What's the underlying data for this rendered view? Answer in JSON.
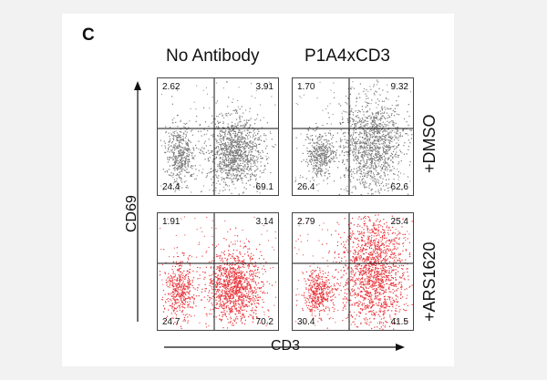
{
  "figure": {
    "panel_letter": "C",
    "column_titles": [
      "No Antibody",
      "P1A4xCD3"
    ],
    "row_labels": [
      "+DMSO",
      "+ARS1620"
    ],
    "y_axis_label": "CD69",
    "x_axis_label": "CD3",
    "colors": {
      "dmso_points": "#7a7a7a",
      "ars_points": "#e8383d",
      "gate_lines": "#111111",
      "axis": "#111111"
    },
    "panels": [
      {
        "name": "no-antibody-dmso",
        "row": 0,
        "col": 0,
        "upper_left": "2.62",
        "upper_right": "3.91",
        "lower_left": "24.4",
        "lower_right": "69.1"
      },
      {
        "name": "p1a4xcd3-dmso",
        "row": 0,
        "col": 1,
        "upper_left": "1.70",
        "upper_right": "9.32",
        "lower_left": "26.4",
        "lower_right": "62.6"
      },
      {
        "name": "no-antibody-ars1620",
        "row": 1,
        "col": 0,
        "upper_left": "1.91",
        "upper_right": "3.14",
        "lower_left": "24.7",
        "lower_right": "70.2"
      },
      {
        "name": "p1a4xcd3-ars1620",
        "row": 1,
        "col": 1,
        "upper_left": "2.79",
        "upper_right": "25.4",
        "lower_left": "30.4",
        "lower_right": "41.5"
      }
    ]
  }
}
